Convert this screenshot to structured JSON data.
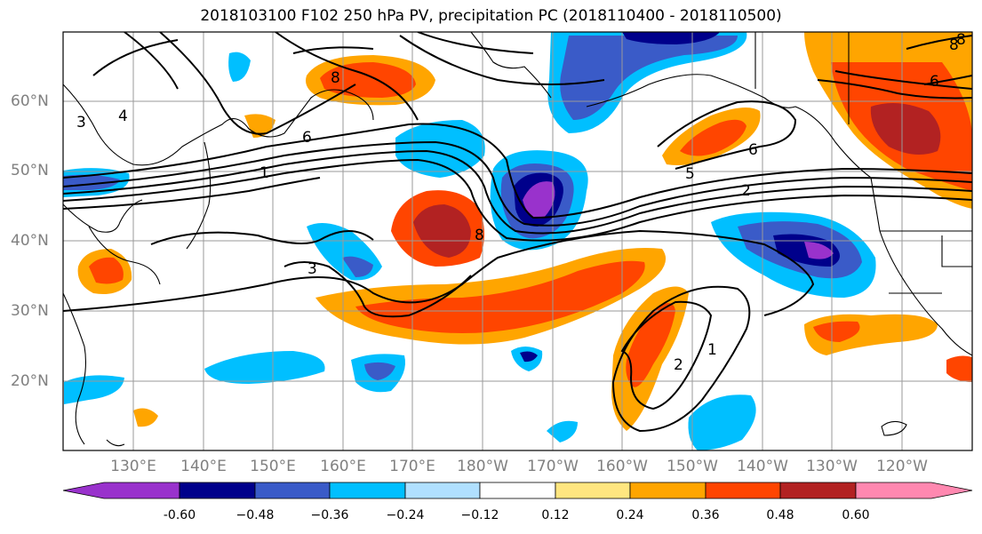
{
  "title": "2018103100 F102 250 hPa PV, precipitation PC (2018110400 - 2018110500)",
  "lat_labels": [
    "60°N",
    "50°N",
    "40°N",
    "30°N",
    "20°N"
  ],
  "lon_labels": [
    "130°E",
    "140°E",
    "150°E",
    "160°E",
    "170°E",
    "180°W",
    "170°W",
    "160°W",
    "150°W",
    "140°W",
    "130°W",
    "120°W"
  ],
  "colorbar": {
    "ticks": [
      "-0.60",
      "−0.48",
      "−0.36",
      "−0.24",
      "−0.12",
      "0.12",
      "0.24",
      "0.36",
      "0.48",
      "0.60"
    ],
    "colors": [
      "#9932CC",
      "#00008B",
      "#3A5BC8",
      "#00BFFF",
      "#B0E0FF",
      "#FFFFFF",
      "#FFE680",
      "#FFA500",
      "#FF4500",
      "#B22222",
      "#FF88B0"
    ]
  },
  "contour_labels": [
    "8",
    "6",
    "1",
    "3",
    "4",
    "3",
    "8",
    "6",
    "5",
    "2",
    "2",
    "1",
    "8",
    "6",
    "8"
  ],
  "map": {
    "lat_range": [
      10,
      70
    ],
    "lon_range": [
      120,
      250
    ],
    "grid": true,
    "shading_variable": "precipitation PC",
    "contour_variable": "250 hPa PV"
  }
}
